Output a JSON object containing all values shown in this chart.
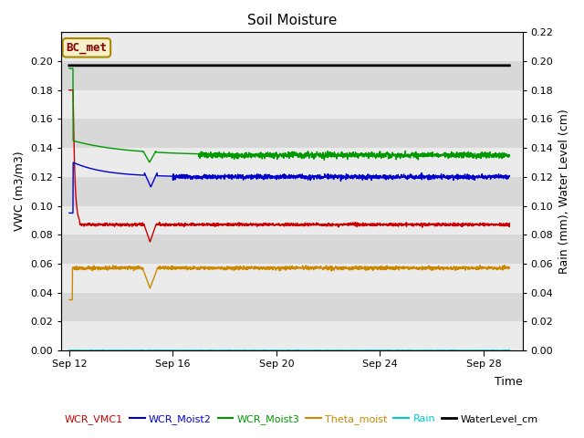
{
  "title": "Soil Moisture",
  "xlabel": "Time",
  "ylabel_left": "VWC (m3/m3)",
  "ylabel_right": "Rain (mm), Water Level (cm)",
  "ylim_left": [
    0.0,
    0.22
  ],
  "ylim_right": [
    0.0,
    0.22
  ],
  "yticks_left": [
    0.0,
    0.02,
    0.04,
    0.06,
    0.08,
    0.1,
    0.12,
    0.14,
    0.16,
    0.18,
    0.2
  ],
  "yticks_right": [
    0.0,
    0.02,
    0.04,
    0.06,
    0.08,
    0.1,
    0.12,
    0.14,
    0.16,
    0.18,
    0.2,
    0.22
  ],
  "xtick_labels": [
    "Sep 12",
    "Sep 16",
    "Sep 20",
    "Sep 24",
    "Sep 28"
  ],
  "xtick_positions": [
    0,
    4,
    8,
    12,
    16
  ],
  "xlim": [
    -0.3,
    17.5
  ],
  "annotation_text": "BC_met",
  "bg_color_light": "#ebebeb",
  "bg_color_dark": "#d8d8d8",
  "fig_color": "#ffffff",
  "legend_entries": [
    "WCR_VMC1",
    "WCR_Moist2",
    "WCR_Moist3",
    "Theta_moist",
    "Rain",
    "WaterLevel_cm"
  ],
  "legend_colors": [
    "#cc0000",
    "#0000cc",
    "#009900",
    "#cc8800",
    "#00cccc",
    "#000000"
  ],
  "water_level": 0.197,
  "band_boundaries": [
    0.0,
    0.02,
    0.04,
    0.06,
    0.08,
    0.1,
    0.12,
    0.14,
    0.16,
    0.18,
    0.2,
    0.22
  ]
}
